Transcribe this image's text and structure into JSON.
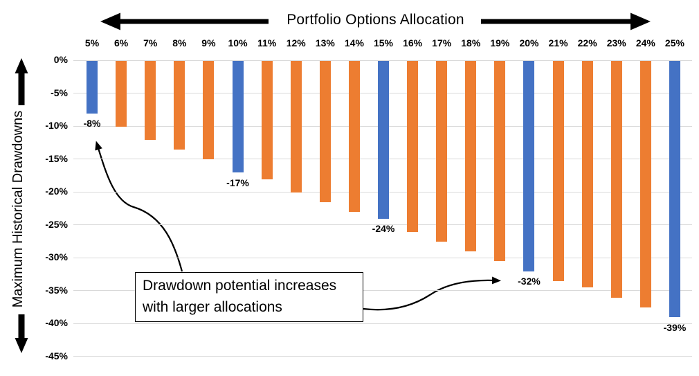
{
  "title": "Portfolio Options Allocation",
  "y_axis_title": "Maximum Historical Drawdowns",
  "annotation": {
    "line1": "Drawdown potential increases",
    "line2": "with larger allocations"
  },
  "colors": {
    "highlight_bar": "#4472C4",
    "default_bar": "#ED7D31",
    "gridline": "#D9D9D9",
    "text": "#000000",
    "arrow": "#000000",
    "background": "#FFFFFF"
  },
  "chart_data": {
    "type": "bar",
    "title": "Portfolio Options Allocation",
    "xlabel": "Portfolio Options Allocation",
    "ylabel": "Maximum Historical Drawdowns",
    "x_axis_position": "top",
    "categories": [
      "5%",
      "6%",
      "7%",
      "8%",
      "9%",
      "10%",
      "11%",
      "12%",
      "13%",
      "14%",
      "15%",
      "16%",
      "17%",
      "18%",
      "19%",
      "20%",
      "21%",
      "22%",
      "23%",
      "24%",
      "25%"
    ],
    "values": [
      -8,
      -10,
      -12,
      -13.5,
      -15,
      -17,
      -18,
      -20,
      -21.5,
      -23,
      -24,
      -26,
      -27.5,
      -29,
      -30.5,
      -32,
      -33.5,
      -34.5,
      -36,
      -37.5,
      -39
    ],
    "highlighted_categories": [
      "5%",
      "10%",
      "15%",
      "20%",
      "25%"
    ],
    "data_labels": {
      "5%": "-8%",
      "10%": "-17%",
      "15%": "-24%",
      "20%": "-32%",
      "25%": "-39%"
    },
    "y_ticks": [
      "0%",
      "-5%",
      "-10%",
      "-15%",
      "-20%",
      "-25%",
      "-30%",
      "-35%",
      "-40%",
      "-45%"
    ],
    "y_tick_values": [
      0,
      -5,
      -10,
      -15,
      -20,
      -25,
      -30,
      -35,
      -40,
      -45
    ],
    "ylim": [
      -45,
      0
    ],
    "grid": true,
    "legend": "none"
  }
}
